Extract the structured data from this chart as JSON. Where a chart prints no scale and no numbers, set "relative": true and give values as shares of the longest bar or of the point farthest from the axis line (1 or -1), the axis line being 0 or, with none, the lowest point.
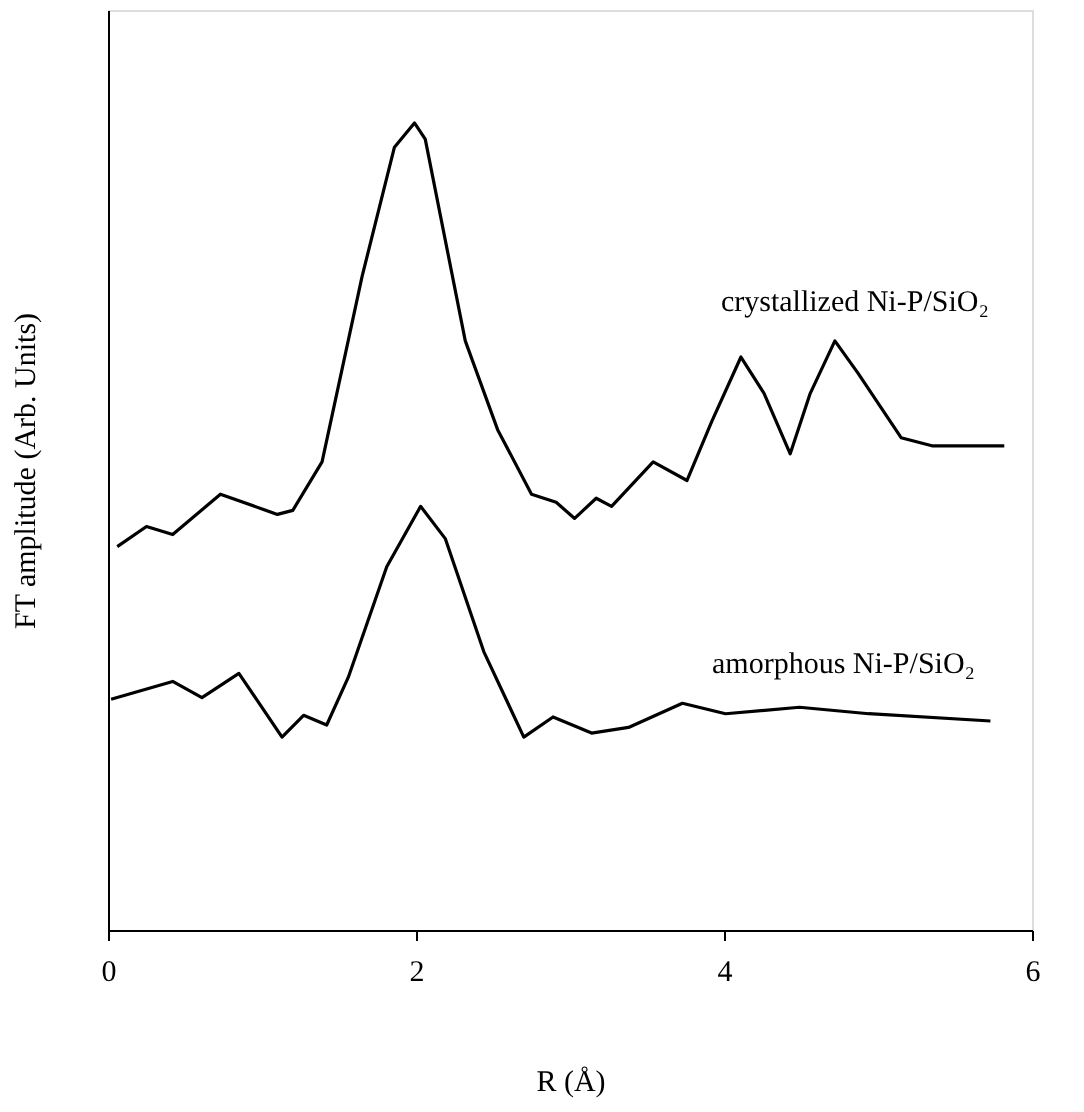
{
  "chart_data": {
    "type": "line",
    "relative": true,
    "xlabel": "R (Å)",
    "ylabel": "FT amplitude (Arb. Units)",
    "xlim": [
      0,
      6
    ],
    "xticks": [
      0,
      2,
      4,
      6
    ],
    "grid": false,
    "legend": false,
    "marker": "none",
    "line_style": "solid",
    "series": [
      {
        "name": "crystallized Ni-P/SiO₂",
        "color": "#000000",
        "x": [
          0.06,
          0.25,
          0.42,
          0.73,
          1.1,
          1.2,
          1.39,
          1.65,
          1.86,
          1.99,
          2.06,
          2.32,
          2.53,
          2.75,
          2.91,
          3.03,
          3.17,
          3.27,
          3.54,
          3.76,
          3.92,
          4.11,
          4.26,
          4.43,
          4.56,
          4.72,
          4.87,
          5.15,
          5.35,
          5.82
        ],
        "values": [
          0.475,
          0.5,
          0.49,
          0.54,
          0.515,
          0.52,
          0.58,
          0.81,
          0.97,
          1.0,
          0.98,
          0.73,
          0.62,
          0.54,
          0.53,
          0.51,
          0.535,
          0.525,
          0.58,
          0.557,
          0.63,
          0.71,
          0.665,
          0.59,
          0.665,
          0.73,
          0.69,
          0.61,
          0.6,
          0.6
        ]
      },
      {
        "name": "amorphous Ni-P/SiO₂",
        "color": "#000000",
        "x": [
          0.02,
          0.42,
          0.61,
          0.85,
          1.13,
          1.27,
          1.42,
          1.56,
          1.81,
          2.03,
          2.19,
          2.44,
          2.7,
          2.89,
          3.14,
          3.38,
          3.73,
          4.01,
          4.49,
          4.94,
          5.73
        ],
        "values": [
          0.286,
          0.308,
          0.288,
          0.318,
          0.239,
          0.266,
          0.254,
          0.313,
          0.45,
          0.525,
          0.485,
          0.345,
          0.239,
          0.264,
          0.244,
          0.251,
          0.281,
          0.268,
          0.276,
          0.268,
          0.259
        ]
      }
    ]
  }
}
